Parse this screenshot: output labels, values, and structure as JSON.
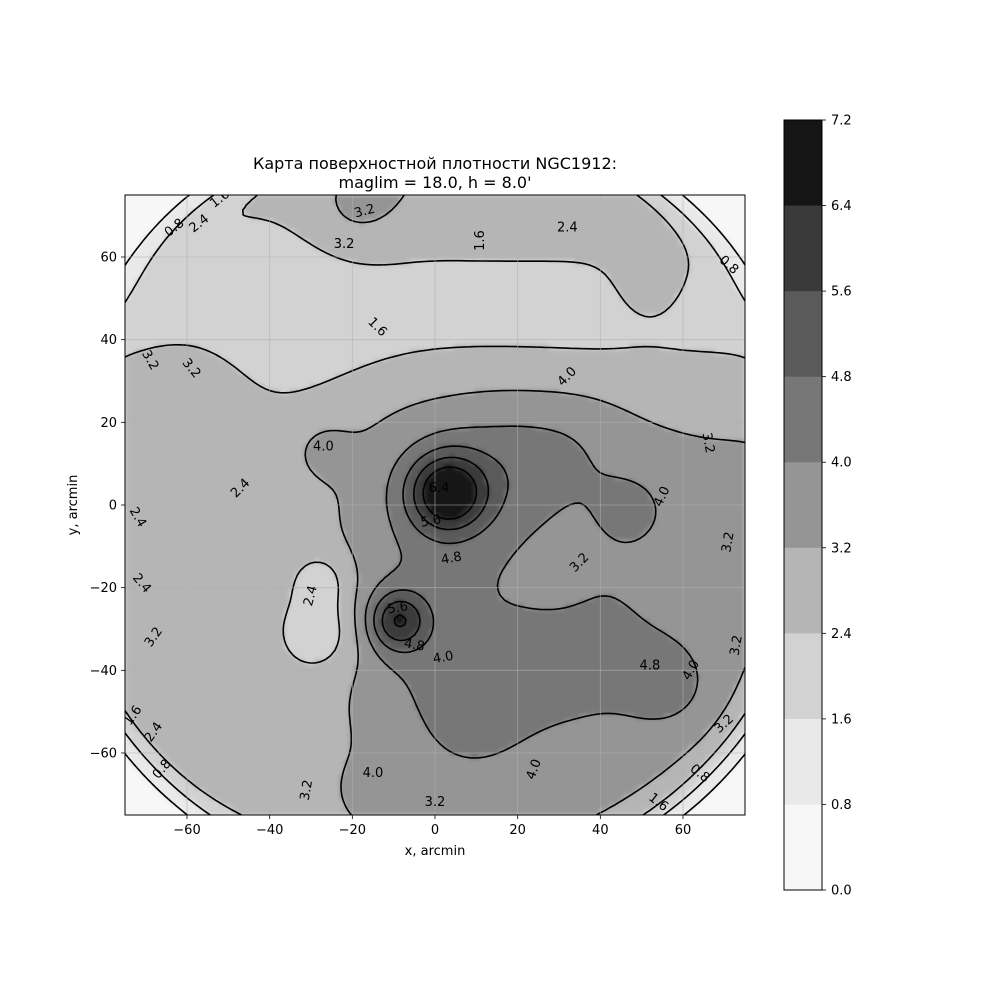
{
  "chart_data": {
    "type": "heatmap",
    "subtype": "filled-contour",
    "title_line1": "Карта поверхностной плотности NGC1912:",
    "title_line2": "maglim = 18.0, h = 8.0'",
    "xlabel": "x, arcmin",
    "ylabel": "y, arcmin",
    "xlim": [
      -75,
      75
    ],
    "ylim": [
      -75,
      75
    ],
    "xticks": [
      "−60",
      "−40",
      "−20",
      "0",
      "20",
      "40",
      "60"
    ],
    "xtick_values": [
      -60,
      -40,
      -20,
      0,
      20,
      40,
      60
    ],
    "yticks": [
      "60",
      "40",
      "20",
      "0",
      "−20",
      "−40",
      "−60"
    ],
    "ytick_values": [
      60,
      40,
      20,
      0,
      -20,
      -40,
      -60
    ],
    "grid": true,
    "colormap": "Greys",
    "levels": [
      0.0,
      0.8,
      1.6,
      2.4,
      3.2,
      4.0,
      4.8,
      5.6,
      6.4,
      7.2
    ],
    "colorbar_labels": [
      "7.2",
      "6.4",
      "5.6",
      "4.8",
      "4.0",
      "3.2",
      "2.4",
      "1.6",
      "0.8",
      "0.0"
    ],
    "level_colors": [
      "#f7f7f7",
      "#e9e9e9",
      "#d2d2d2",
      "#b5b5b5",
      "#959595",
      "#777777",
      "#5a5a5a",
      "#3a3a3a",
      "#151515"
    ],
    "contour_labels": [
      {
        "text": "0.8",
        "x": -63,
        "y": 67,
        "angle": -38
      },
      {
        "text": "2.4",
        "x": -57,
        "y": 68,
        "angle": -38
      },
      {
        "text": "1.6",
        "x": -52,
        "y": 74,
        "angle": -38
      },
      {
        "text": "3.2",
        "x": -17,
        "y": 71,
        "angle": -15
      },
      {
        "text": "3.2",
        "x": -22,
        "y": 63,
        "angle": 0
      },
      {
        "text": "1.6",
        "x": 11,
        "y": 64,
        "angle": -90
      },
      {
        "text": "2.4",
        "x": 32,
        "y": 67,
        "angle": 0
      },
      {
        "text": "0.8",
        "x": 71,
        "y": 58,
        "angle": 42
      },
      {
        "text": "1.6",
        "x": -14,
        "y": 43,
        "angle": 45
      },
      {
        "text": "3.2",
        "x": -69,
        "y": 35,
        "angle": 60
      },
      {
        "text": "3.2",
        "x": -59,
        "y": 33,
        "angle": 50
      },
      {
        "text": "4.0",
        "x": 32,
        "y": 31,
        "angle": -45
      },
      {
        "text": "3.2",
        "x": 66,
        "y": 15,
        "angle": 80
      },
      {
        "text": "4.0",
        "x": -27,
        "y": 14,
        "angle": 0
      },
      {
        "text": "2.4",
        "x": -47,
        "y": 4,
        "angle": -45
      },
      {
        "text": "6.4",
        "x": 1,
        "y": 4,
        "angle": 0
      },
      {
        "text": "5.6",
        "x": -1,
        "y": -4,
        "angle": -10
      },
      {
        "text": "4.0",
        "x": 55,
        "y": 2,
        "angle": -65
      },
      {
        "text": "2.4",
        "x": -72,
        "y": -3,
        "angle": 60
      },
      {
        "text": "3.2",
        "x": 71,
        "y": -9,
        "angle": -80
      },
      {
        "text": "4.8",
        "x": 4,
        "y": -13,
        "angle": -10
      },
      {
        "text": "3.2",
        "x": 35,
        "y": -14,
        "angle": -45
      },
      {
        "text": "2.4",
        "x": -71,
        "y": -19,
        "angle": 50
      },
      {
        "text": "2.4",
        "x": -30,
        "y": -22,
        "angle": -75
      },
      {
        "text": "5.6",
        "x": -9,
        "y": -25,
        "angle": -10
      },
      {
        "text": "3.2",
        "x": -68,
        "y": -32,
        "angle": -55
      },
      {
        "text": "4.8",
        "x": -5,
        "y": -34,
        "angle": 10
      },
      {
        "text": "4.0",
        "x": 2,
        "y": -37,
        "angle": -10
      },
      {
        "text": "3.2",
        "x": 73,
        "y": -34,
        "angle": -80
      },
      {
        "text": "4.8",
        "x": 52,
        "y": -39,
        "angle": 0
      },
      {
        "text": "4.0",
        "x": 62,
        "y": -40,
        "angle": -60
      },
      {
        "text": "1.6",
        "x": -73,
        "y": -51,
        "angle": -55
      },
      {
        "text": "2.4",
        "x": -68,
        "y": -55,
        "angle": -55
      },
      {
        "text": "3.2",
        "x": 70,
        "y": -53,
        "angle": -42
      },
      {
        "text": "0.8",
        "x": -66,
        "y": -64,
        "angle": -50
      },
      {
        "text": "4.0",
        "x": -15,
        "y": -65,
        "angle": 0
      },
      {
        "text": "4.0",
        "x": 24,
        "y": -64,
        "angle": -70
      },
      {
        "text": "0.8",
        "x": 64,
        "y": -65,
        "angle": 38
      },
      {
        "text": "3.2",
        "x": -31,
        "y": -69,
        "angle": -80
      },
      {
        "text": "3.2",
        "x": 0,
        "y": -72,
        "angle": 0
      },
      {
        "text": "1.6",
        "x": 54,
        "y": -72,
        "angle": 38
      }
    ]
  }
}
